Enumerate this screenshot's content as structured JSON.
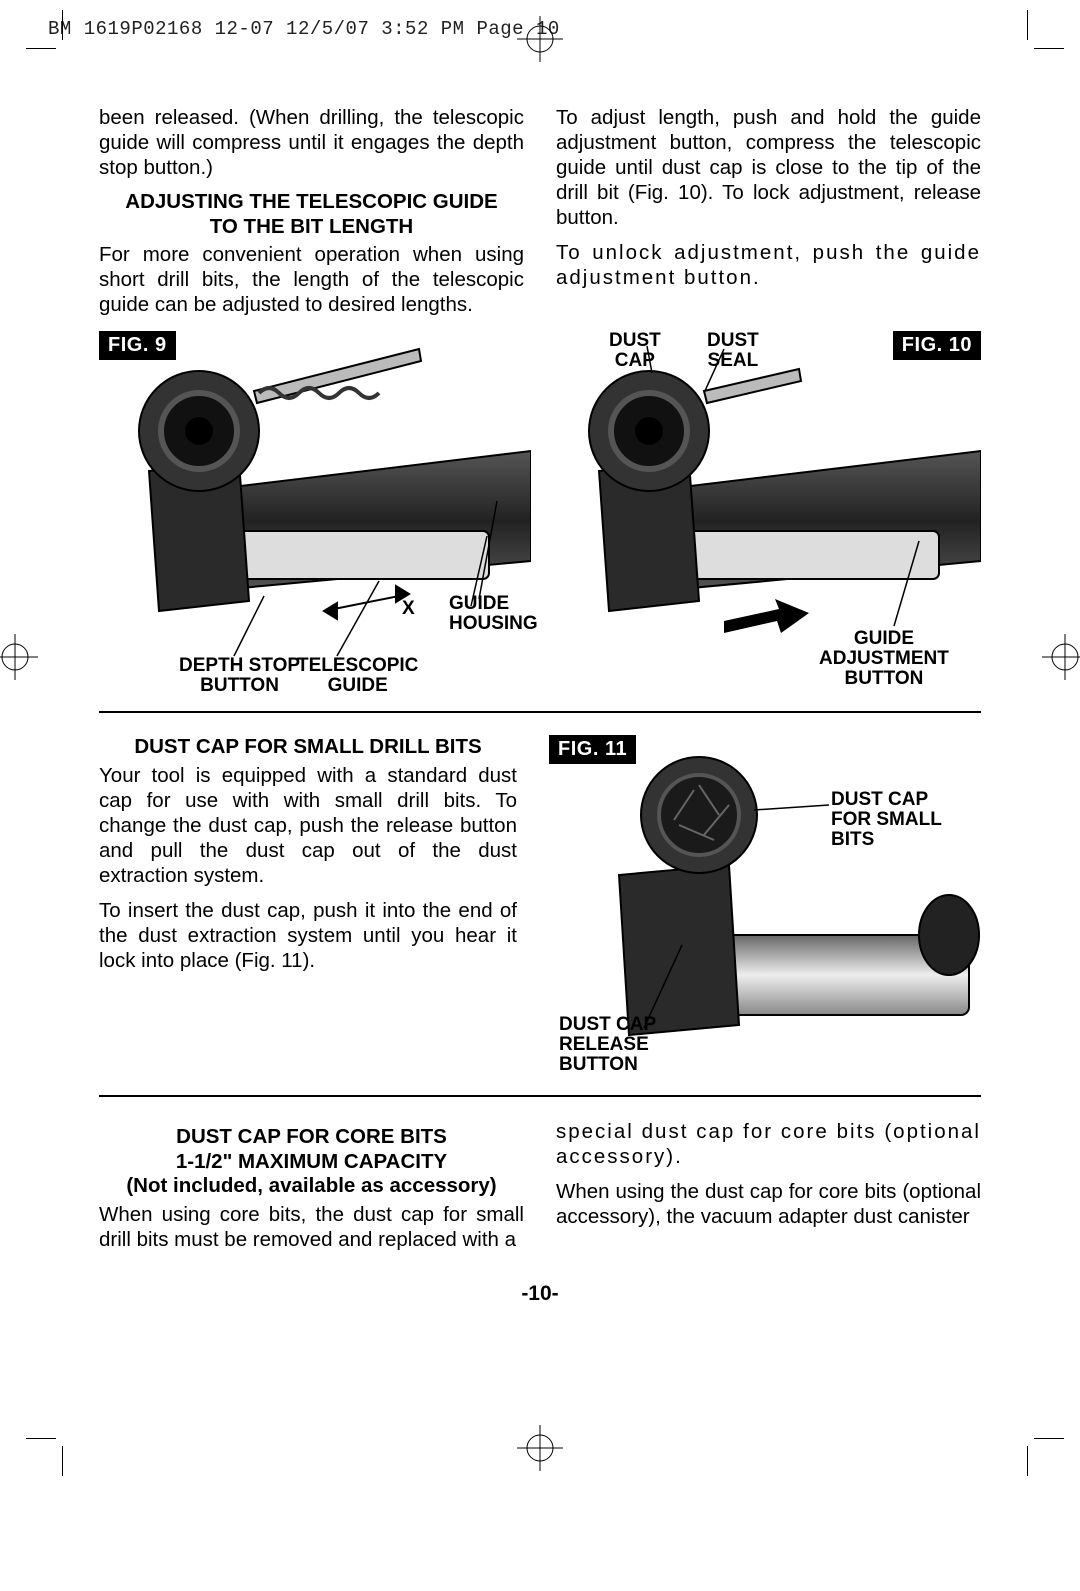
{
  "header": "BM 1619P02168 12-07  12/5/07  3:52 PM  Page 10",
  "pageNumber": "-10-",
  "intro": {
    "leftPara1": "been released. (When drilling, the telescopic guide will compress until it engages the depth stop button.)",
    "subheadLine1": "ADJUSTING THE TELESCOPIC GUIDE",
    "subheadLine2": "TO THE BIT LENGTH",
    "leftPara2": "For more convenient operation when using short drill bits, the length of the telescopic guide can be adjusted to desired lengths.",
    "rightPara1": "To adjust length, push and hold the guide adjustment button, compress the telescopic guide until dust cap is close to the tip of the drill bit (Fig. 10).  To lock adjustment, release button.",
    "rightPara2": "To unlock adjustment, push the guide adjustment button."
  },
  "fig9": {
    "label": "FIG. 9",
    "callouts": {
      "guideHousing": "GUIDE\nHOUSING",
      "x": "X",
      "depthStop": "DEPTH STOP\nBUTTON",
      "telescopic": "TELESCOPIC\nGUIDE"
    }
  },
  "fig10": {
    "label": "FIG. 10",
    "callouts": {
      "dustCap": "DUST\nCAP",
      "dustSeal": "DUST\nSEAL",
      "guideAdj": "GUIDE\nADJUSTMENT\nBUTTON"
    }
  },
  "section2": {
    "subhead": "DUST CAP FOR SMALL DRILL BITS",
    "para1": "Your tool is equipped with a standard dust cap for use with with small drill bits. To change the dust cap, push the release button and pull the dust cap out of the dust extraction system.",
    "para2": "To insert the dust cap, push it into the end of the dust extraction system until you hear it lock into place (Fig. 11)."
  },
  "fig11": {
    "label": "FIG. 11",
    "callouts": {
      "dustCapSmall": "DUST CAP\nFOR SMALL BITS",
      "release": "DUST CAP\nRELEASE\nBUTTON"
    }
  },
  "section3": {
    "subheadLine1": "DUST CAP FOR CORE BITS",
    "subheadLine2": "1-1/2\" MAXIMUM CAPACITY",
    "subheadLine3": "(Not included, available as accessory)",
    "leftPara": "When using core bits, the dust cap for small drill bits must be removed and replaced with a",
    "rightPara1": "special dust cap for core bits (optional accessory).",
    "rightPara2": "When using the dust cap for core bits (optional accessory), the vacuum adapter dust canister"
  }
}
